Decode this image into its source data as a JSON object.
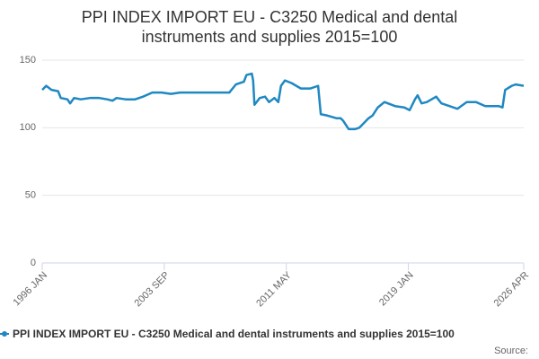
{
  "chart_data": {
    "type": "line",
    "title": "PPI INDEX IMPORT EU - C3250 Medical and dental instruments and supplies 2015=100",
    "source": "Source:",
    "x": [
      "1996 JAN",
      "1996 APR",
      "1996 AUG",
      "1997 JAN",
      "1997 MAR",
      "1997 AUG",
      "1997 OCT",
      "1998 JAN",
      "1998 JUN",
      "1999 JAN",
      "1999 AUG",
      "2000 FEB",
      "2000 JUN",
      "2000 SEP",
      "2001 APR",
      "2001 NOV",
      "2002 MAY",
      "2002 DEC",
      "2003 JUL",
      "2004 FEB",
      "2004 SEP",
      "2005 JUL",
      "2006 JAN",
      "2006 DEC",
      "2007 OCT",
      "2008 MAR",
      "2008 SEP",
      "2008 NOV",
      "2009 MAR",
      "2009 APR",
      "2009 MAY",
      "2009 SEP",
      "2010 JAN",
      "2010 APR",
      "2010 AUG",
      "2010 NOV",
      "2011 JAN",
      "2011 APR",
      "2011 SEP",
      "2012 APR",
      "2012 NOV",
      "2013 MAY",
      "2013 JUL",
      "2013 DEC",
      "2014 JUL",
      "2014 OCT",
      "2014 DEC",
      "2015 APR",
      "2015 SEP",
      "2015 DEC",
      "2016 MAR",
      "2016 JUL",
      "2016 OCT",
      "2017 FEB",
      "2017 JUL",
      "2018 MAR",
      "2018 OCT",
      "2019 FEB",
      "2019 JUN",
      "2019 AUG",
      "2019 NOV",
      "2020 MAR",
      "2020 OCT",
      "2021 FEB",
      "2021 AUG",
      "2022 FEB",
      "2022 SEP",
      "2023 APR",
      "2023 NOV",
      "2024 SEP",
      "2024 DEC",
      "2025 FEB",
      "2025 JUL",
      "2025 OCT",
      "2026 APR"
    ],
    "series": [
      {
        "name": "PPI INDEX IMPORT EU - C3250 Medical and dental instruments and supplies 2015=100",
        "color": "#1f88c2",
        "values": [
          128,
          131,
          128,
          127,
          122,
          121,
          118,
          122,
          121,
          122,
          122,
          121,
          120,
          122,
          121,
          121,
          123,
          126,
          126,
          125,
          126,
          126,
          126,
          126,
          126,
          132,
          134,
          139,
          140,
          135,
          117,
          122,
          123,
          119,
          122,
          119,
          131,
          135,
          133,
          129,
          129,
          131,
          110,
          109,
          107,
          107,
          105,
          99,
          99,
          100,
          103,
          107,
          109,
          115,
          119,
          116,
          115,
          113,
          121,
          124,
          118,
          119,
          123,
          118,
          116,
          114,
          119,
          119,
          116,
          116,
          115,
          128,
          131,
          132,
          131
        ]
      }
    ],
    "xlim": [
      "1996 JAN",
      "2026 APR"
    ],
    "xticks": [
      "1996 JAN",
      "2003 SEP",
      "2011 MAY",
      "2019 JAN",
      "2026 APR"
    ],
    "ylim": [
      0,
      150
    ],
    "yticks": [
      0,
      50,
      100,
      150
    ],
    "grid": true
  }
}
